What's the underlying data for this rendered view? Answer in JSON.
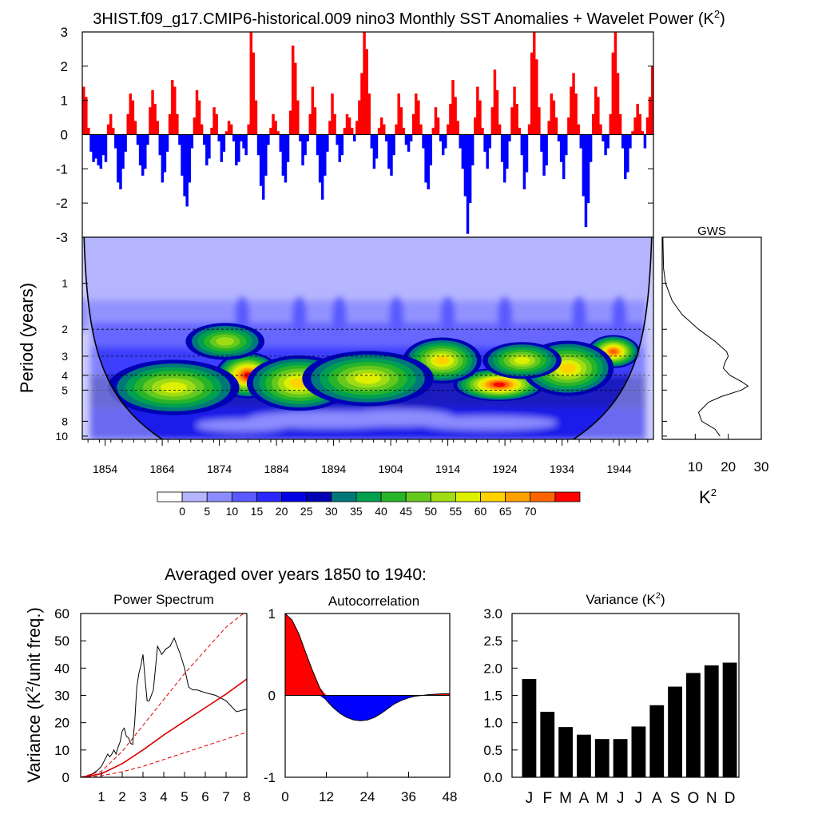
{
  "title": "3HIST.f09_g17.CMIP6-historical.009 nino3 Monthly SST Anomalies + Wavelet Power (K",
  "title_sup": "2",
  "title_close": ")",
  "colors": {
    "positive": "#ff0000",
    "negative": "#0000ff",
    "axis": "#000000",
    "model_line": "#dd0000"
  },
  "chart_data": [
    {
      "id": "sst-anomaly",
      "type": "bar",
      "x_start_year": 1850,
      "x_end_year": 1950,
      "ylim": [
        -3,
        3
      ],
      "y_ticks": [
        "-3",
        "-2",
        "-1",
        "0",
        "1",
        "2",
        "3"
      ],
      "y_tick_values": [
        -3,
        -2,
        -1,
        0,
        1,
        2,
        3
      ],
      "description_values_note": "monthly-ish anomalies approximated",
      "values": [
        1.4,
        1.1,
        0.2,
        -0.5,
        -0.8,
        -0.7,
        -0.9,
        -1.0,
        -0.6,
        -0.8,
        0.3,
        0.6,
        0.2,
        -0.4,
        -1.4,
        -1.6,
        -1.0,
        -0.5,
        0.6,
        1.2,
        1.0,
        0.4,
        -0.3,
        -0.9,
        -1.2,
        -1.0,
        -0.3,
        0.8,
        1.3,
        0.9,
        0.4,
        -0.6,
        -1.4,
        -1.1,
        -0.5,
        0.6,
        1.6,
        1.4,
        0.6,
        -0.3,
        -1.2,
        -1.8,
        -2.1,
        -1.4,
        -0.4,
        0.5,
        1.3,
        1.0,
        0.3,
        -0.3,
        -0.9,
        -0.7,
        0.2,
        0.8,
        0.6,
        -0.2,
        -0.8,
        -0.5,
        0.1,
        0.4,
        0.3,
        -0.2,
        -0.9,
        -0.8,
        -0.2,
        -0.4,
        -0.6,
        0.3,
        3.0,
        2.4,
        1.0,
        -0.6,
        -1.5,
        -1.9,
        -1.2,
        -0.3,
        0.2,
        0.6,
        0.4,
        0.1,
        -0.5,
        -1.2,
        -1.4,
        -0.8,
        0.7,
        2.6,
        2.1,
        1.0,
        -0.2,
        -0.9,
        -0.6,
        -0.2,
        0.6,
        1.4,
        0.8,
        -0.6,
        -1.4,
        -1.9,
        -1.2,
        -0.5,
        0.4,
        1.2,
        0.6,
        -0.3,
        -0.8,
        -0.6,
        0.2,
        0.6,
        0.5,
        0.2,
        -0.2,
        0.4,
        1.0,
        1.8,
        3.0,
        2.5,
        1.2,
        -0.4,
        -1.0,
        -0.7,
        0.2,
        0.5,
        0.3,
        -0.2,
        -1.0,
        -1.2,
        -0.6,
        0.3,
        1.2,
        0.8,
        0.2,
        -0.3,
        -0.5,
        -0.2,
        0.6,
        1.2,
        1.0,
        0.3,
        -0.4,
        -1.4,
        -1.6,
        -0.9,
        0.2,
        0.8,
        0.5,
        -0.2,
        -0.6,
        -0.4,
        0.3,
        0.9,
        1.6,
        1.1,
        0.4,
        -0.4,
        -1.0,
        -1.8,
        -2.9,
        -2.0,
        -0.9,
        0.5,
        1.4,
        1.0,
        0.2,
        -0.5,
        -1.0,
        -0.4,
        0.8,
        1.9,
        1.3,
        0.3,
        -0.8,
        -1.4,
        -1.0,
        -0.2,
        0.8,
        1.4,
        0.9,
        0.2,
        -0.6,
        -1.6,
        -1.1,
        0.3,
        2.4,
        3.0,
        2.2,
        0.8,
        -0.5,
        -1.2,
        -0.9,
        0.4,
        1.2,
        1.0,
        0.5,
        -0.2,
        -0.8,
        -1.3,
        -0.6,
        0.5,
        1.4,
        1.8,
        1.2,
        0.3,
        -0.4,
        -1.8,
        -2.7,
        -2.0,
        -0.8,
        0.6,
        1.4,
        1.1,
        0.3,
        -0.2,
        -0.6,
        -0.4,
        0.6,
        2.4,
        3.0,
        1.8,
        0.6,
        -0.4,
        -1.3,
        -1.1,
        -0.4,
        0.1,
        0.5,
        0.9,
        0.6,
        0.1,
        -0.4,
        0.5,
        1.1,
        2.0
      ],
      "panel_id": "sst-panel"
    },
    {
      "id": "wavelet-power",
      "type": "heatmap",
      "ylabel": "Period (years)",
      "y_tick_labels": [
        "1",
        "2",
        "3",
        "4",
        "5",
        "8",
        "10"
      ],
      "y_tick_values": [
        1,
        2,
        3,
        4,
        5,
        8,
        10
      ],
      "y_dotted_lines": [
        2,
        3,
        4,
        5
      ],
      "x_tick_labels": [
        "1854",
        "1864",
        "1874",
        "1884",
        "1894",
        "1904",
        "1914",
        "1924",
        "1934",
        "1944"
      ],
      "x_tick_values": [
        1854,
        1864,
        1874,
        1884,
        1894,
        1904,
        1914,
        1924,
        1934,
        1944
      ],
      "xlim": [
        1850,
        1950
      ],
      "ylim_period": [
        0.5,
        10.5
      ],
      "colorbar_labels": [
        "0",
        "5",
        "10",
        "15",
        "20",
        "25",
        "30",
        "35",
        "40",
        "45",
        "50",
        "55",
        "60",
        "65",
        "70"
      ],
      "colorbar_colors": [
        "#ffffff",
        "#b4b4ff",
        "#8c8cff",
        "#5a5aff",
        "#2828ff",
        "#0000e6",
        "#0000b4",
        "#00787a",
        "#00a050",
        "#28b428",
        "#64c81e",
        "#a0dc14",
        "#dcf000",
        "#ffd200",
        "#ffa000",
        "#ff6400",
        "#ff0000"
      ],
      "hotspots": [
        {
          "year": 1879,
          "period": 4.0,
          "power": 68,
          "spread_year": 2.5,
          "spread_period": 0.25
        },
        {
          "year": 1923,
          "period": 4.6,
          "power": 64,
          "spread_year": 3.5,
          "spread_period": 0.18
        },
        {
          "year": 1943,
          "period": 2.8,
          "power": 62,
          "spread_year": 2.0,
          "spread_period": 0.18
        },
        {
          "year": 1888,
          "period": 4.5,
          "power": 45,
          "spread_year": 4.0,
          "spread_period": 0.3
        },
        {
          "year": 1866,
          "period": 4.8,
          "power": 42,
          "spread_year": 5.0,
          "spread_period": 0.3
        },
        {
          "year": 1935,
          "period": 3.6,
          "power": 48,
          "spread_year": 3.5,
          "spread_period": 0.3
        },
        {
          "year": 1913,
          "period": 3.2,
          "power": 45,
          "spread_year": 3.0,
          "spread_period": 0.25
        },
        {
          "year": 1927,
          "period": 3.2,
          "power": 42,
          "spread_year": 3.0,
          "spread_period": 0.2
        },
        {
          "year": 1900,
          "period": 4.2,
          "power": 40,
          "spread_year": 5.0,
          "spread_period": 0.3
        },
        {
          "year": 1875,
          "period": 2.4,
          "power": 35,
          "spread_year": 3.0,
          "spread_period": 0.2
        }
      ]
    },
    {
      "id": "gws",
      "type": "line",
      "title": "GWS",
      "xlabel": "K",
      "xlabel_sup": "2",
      "x_ticks": [
        "10",
        "20",
        "30"
      ],
      "x_tick_values": [
        10,
        20,
        30
      ],
      "xlim": [
        0,
        30
      ],
      "period": [
        0.5,
        0.8,
        1.0,
        1.3,
        1.6,
        2.0,
        2.4,
        2.8,
        3.0,
        3.3,
        3.6,
        4.0,
        4.4,
        4.7,
        5.0,
        5.5,
        6.0,
        7.0,
        8.0,
        9.0,
        10.0
      ],
      "power": [
        0.2,
        0.4,
        1.0,
        3.0,
        6.0,
        11.0,
        16.0,
        19.5,
        20.0,
        19.0,
        18.5,
        20.5,
        24.0,
        26.0,
        24.0,
        18.0,
        14.0,
        11.0,
        12.0,
        16.0,
        17.5
      ]
    },
    {
      "id": "power-spectrum",
      "type": "line",
      "title": "Power Spectrum",
      "ylabel": "Variance (K",
      "ylabel_sup": "2",
      "ylabel_tail": "/unit freq.)",
      "xlim": [
        0,
        8
      ],
      "ylim": [
        0,
        60
      ],
      "x_ticks": [
        "1",
        "2",
        "3",
        "4",
        "5",
        "6",
        "7",
        "8"
      ],
      "x_tick_values": [
        1,
        2,
        3,
        4,
        5,
        6,
        7,
        8
      ],
      "y_ticks": [
        "0",
        "10",
        "20",
        "30",
        "40",
        "50",
        "60"
      ],
      "y_tick_values": [
        0,
        10,
        20,
        30,
        40,
        50,
        60
      ],
      "series": [
        {
          "style": "spectrum",
          "x": [
            0.0,
            0.2,
            0.4,
            0.6,
            0.8,
            1.0,
            1.1,
            1.2,
            1.3,
            1.4,
            1.5,
            1.6,
            1.7,
            1.8,
            1.9,
            2.0,
            2.1,
            2.2,
            2.3,
            2.4,
            2.5,
            2.6,
            2.7,
            2.8,
            2.9,
            3.0,
            3.1,
            3.2,
            3.3,
            3.5,
            3.7,
            3.9,
            4.1,
            4.3,
            4.5,
            4.8,
            5.0,
            5.2,
            5.4,
            5.6,
            6.0,
            6.5,
            7.0,
            7.5,
            8.0
          ],
          "y": [
            0.0,
            0.2,
            0.6,
            1.4,
            2.5,
            4.0,
            5.5,
            7.0,
            8.5,
            7.5,
            8.5,
            10.0,
            8.5,
            11.0,
            13.0,
            17.0,
            18.0,
            15.0,
            14.5,
            12.5,
            12.0,
            20.0,
            33.0,
            38.0,
            41.0,
            45.0,
            36.0,
            28.0,
            28.0,
            32.0,
            48.0,
            45.0,
            47.0,
            48.0,
            51.0,
            45.0,
            40.0,
            33.0,
            32.0,
            32.0,
            31.0,
            30.0,
            28.0,
            24.0,
            25.0
          ]
        },
        {
          "style": "red-solid",
          "x": [
            0,
            1,
            2,
            3,
            4,
            5,
            6,
            7,
            8
          ],
          "y": [
            0.0,
            1.3,
            5.0,
            10.0,
            15.5,
            20.5,
            25.5,
            30.5,
            36.0
          ]
        },
        {
          "style": "red-dashed",
          "x": [
            0,
            1,
            2,
            3,
            4,
            5,
            6,
            7,
            8
          ],
          "y": [
            0.0,
            2.2,
            9.5,
            19.0,
            28.5,
            38.0,
            46.5,
            55.0,
            61.0
          ]
        },
        {
          "style": "red-dashed",
          "x": [
            0,
            1,
            2,
            3,
            4,
            5,
            6,
            7,
            8
          ],
          "y": [
            0.0,
            0.6,
            2.0,
            4.0,
            6.5,
            9.0,
            11.5,
            14.0,
            16.5
          ]
        }
      ]
    },
    {
      "id": "autocorrelation",
      "type": "area",
      "title": "Autocorrelation",
      "xlim": [
        0,
        48
      ],
      "ylim": [
        -1,
        1
      ],
      "x_ticks": [
        "0",
        "12",
        "24",
        "36",
        "48"
      ],
      "x_tick_values": [
        0,
        12,
        24,
        36,
        48
      ],
      "y_ticks": [
        "-1",
        "0",
        "1"
      ],
      "y_tick_values": [
        -1,
        0,
        1
      ],
      "x": [
        0,
        2,
        4,
        6,
        8,
        10,
        12,
        14,
        16,
        18,
        20,
        22,
        24,
        26,
        28,
        30,
        32,
        34,
        36,
        38,
        40,
        42,
        44,
        46,
        48
      ],
      "y": [
        1.0,
        0.92,
        0.75,
        0.52,
        0.3,
        0.1,
        -0.06,
        -0.15,
        -0.22,
        -0.27,
        -0.3,
        -0.31,
        -0.3,
        -0.27,
        -0.22,
        -0.16,
        -0.1,
        -0.06,
        -0.03,
        -0.01,
        0.0,
        0.01,
        0.015,
        0.02,
        0.02
      ]
    },
    {
      "id": "variance",
      "type": "bar",
      "title": "Variance (K",
      "title_sup": "2",
      "title_close": ")",
      "categories": [
        "J",
        "F",
        "M",
        "A",
        "M",
        "J",
        "J",
        "A",
        "S",
        "O",
        "N",
        "D"
      ],
      "values": [
        1.8,
        1.2,
        0.92,
        0.78,
        0.7,
        0.7,
        0.93,
        1.32,
        1.66,
        1.91,
        2.05,
        2.1
      ],
      "ylim": [
        0,
        3
      ],
      "y_ticks": [
        "0.0",
        "0.5",
        "1.0",
        "1.5",
        "2.0",
        "2.5",
        "3.0"
      ],
      "y_tick_values": [
        0,
        0.5,
        1.0,
        1.5,
        2.0,
        2.5,
        3.0
      ]
    }
  ],
  "averaged_label": "Averaged over years 1850 to 1940:"
}
